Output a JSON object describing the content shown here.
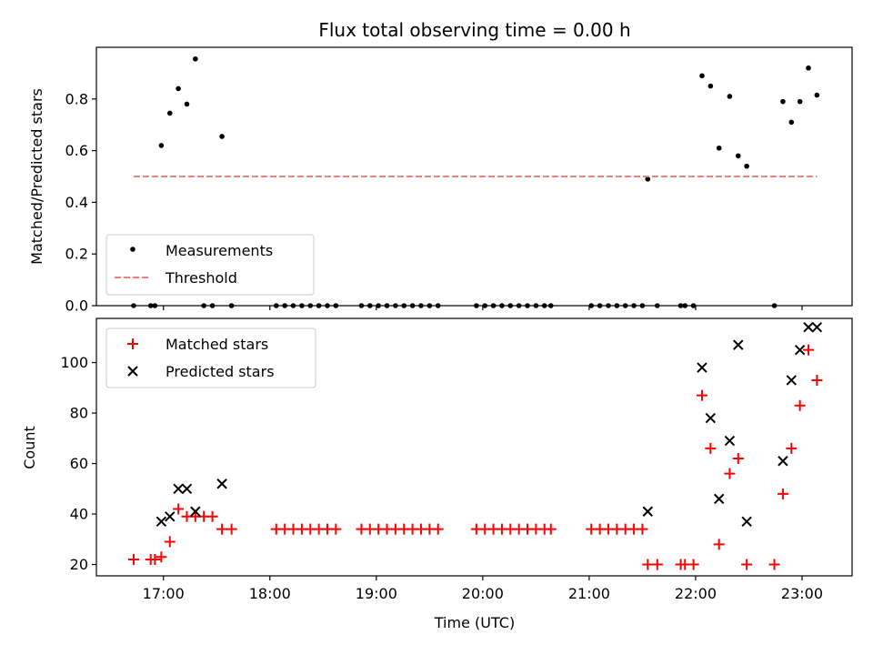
{
  "chart_data": {
    "type": "scatter",
    "title": "Flux total observing time = 0.00 h",
    "xlabel": "Time (UTC)",
    "x_unit": "hours (UTC, decimal)",
    "xlim": [
      16.37,
      23.47
    ],
    "x_ticks": [
      {
        "value": 17,
        "label": "17:00"
      },
      {
        "value": 18,
        "label": "18:00"
      },
      {
        "value": 19,
        "label": "19:00"
      },
      {
        "value": 20,
        "label": "20:00"
      },
      {
        "value": 21,
        "label": "21:00"
      },
      {
        "value": 22,
        "label": "22:00"
      },
      {
        "value": 23,
        "label": "23:00"
      }
    ],
    "panels": [
      {
        "name": "ratio",
        "ylabel": "Matched/Predicted stars",
        "ylim": [
          0,
          1.0
        ],
        "y_ticks": [
          0.0,
          0.2,
          0.4,
          0.6,
          0.8
        ],
        "y_tick_labels": [
          "0.0",
          "0.2",
          "0.4",
          "0.6",
          "0.8"
        ],
        "legend_position": "lower-left",
        "series": [
          {
            "name": "Measurements",
            "marker": "dot",
            "color": "#000000",
            "points": [
              [
                16.72,
                0.0
              ],
              [
                16.88,
                0.0
              ],
              [
                16.92,
                0.0
              ],
              [
                16.98,
                0.62
              ],
              [
                17.06,
                0.745
              ],
              [
                17.14,
                0.84
              ],
              [
                17.22,
                0.78
              ],
              [
                17.3,
                0.955
              ],
              [
                17.38,
                0.0
              ],
              [
                17.46,
                0.0
              ],
              [
                17.55,
                0.655
              ],
              [
                17.64,
                0.0
              ],
              [
                18.06,
                0.0
              ],
              [
                18.14,
                0.0
              ],
              [
                18.22,
                0.0
              ],
              [
                18.3,
                0.0
              ],
              [
                18.38,
                0.0
              ],
              [
                18.46,
                0.0
              ],
              [
                18.54,
                0.0
              ],
              [
                18.62,
                0.0
              ],
              [
                18.86,
                0.0
              ],
              [
                18.94,
                0.0
              ],
              [
                19.02,
                0.0
              ],
              [
                19.1,
                0.0
              ],
              [
                19.18,
                0.0
              ],
              [
                19.26,
                0.0
              ],
              [
                19.34,
                0.0
              ],
              [
                19.42,
                0.0
              ],
              [
                19.5,
                0.0
              ],
              [
                19.58,
                0.0
              ],
              [
                19.94,
                0.0
              ],
              [
                20.02,
                0.0
              ],
              [
                20.1,
                0.0
              ],
              [
                20.18,
                0.0
              ],
              [
                20.26,
                0.0
              ],
              [
                20.34,
                0.0
              ],
              [
                20.42,
                0.0
              ],
              [
                20.5,
                0.0
              ],
              [
                20.58,
                0.0
              ],
              [
                20.64,
                0.0
              ],
              [
                21.02,
                0.0
              ],
              [
                21.1,
                0.0
              ],
              [
                21.18,
                0.0
              ],
              [
                21.26,
                0.0
              ],
              [
                21.34,
                0.0
              ],
              [
                21.42,
                0.0
              ],
              [
                21.5,
                0.0
              ],
              [
                21.55,
                0.49
              ],
              [
                21.64,
                0.0
              ],
              [
                21.86,
                0.0
              ],
              [
                21.9,
                0.0
              ],
              [
                21.98,
                0.0
              ],
              [
                22.06,
                0.89
              ],
              [
                22.14,
                0.85
              ],
              [
                22.22,
                0.61
              ],
              [
                22.32,
                0.81
              ],
              [
                22.4,
                0.58
              ],
              [
                22.48,
                0.54
              ],
              [
                22.74,
                0.0
              ],
              [
                22.82,
                0.79
              ],
              [
                22.9,
                0.71
              ],
              [
                22.98,
                0.79
              ],
              [
                23.06,
                0.92
              ],
              [
                23.14,
                0.815
              ]
            ]
          },
          {
            "name": "Threshold",
            "marker": "dashed-line",
            "color": "#f08080",
            "points": [
              [
                16.72,
                0.5
              ],
              [
                23.14,
                0.5
              ]
            ]
          }
        ]
      },
      {
        "name": "count",
        "ylabel": "Count",
        "ylim": [
          15.5,
          117.5
        ],
        "y_ticks": [
          20,
          40,
          60,
          80,
          100
        ],
        "y_tick_labels": [
          "20",
          "40",
          "60",
          "80",
          "100"
        ],
        "legend_position": "upper-left",
        "series": [
          {
            "name": "Matched stars",
            "marker": "plus",
            "color": "#ff0000",
            "points": [
              [
                16.72,
                22
              ],
              [
                16.88,
                22
              ],
              [
                16.92,
                22
              ],
              [
                16.98,
                23
              ],
              [
                17.06,
                29
              ],
              [
                17.14,
                42
              ],
              [
                17.22,
                39
              ],
              [
                17.3,
                39
              ],
              [
                17.38,
                39
              ],
              [
                17.46,
                39
              ],
              [
                17.55,
                34
              ],
              [
                17.64,
                34
              ],
              [
                18.06,
                34
              ],
              [
                18.14,
                34
              ],
              [
                18.22,
                34
              ],
              [
                18.3,
                34
              ],
              [
                18.38,
                34
              ],
              [
                18.46,
                34
              ],
              [
                18.54,
                34
              ],
              [
                18.62,
                34
              ],
              [
                18.86,
                34
              ],
              [
                18.94,
                34
              ],
              [
                19.02,
                34
              ],
              [
                19.1,
                34
              ],
              [
                19.18,
                34
              ],
              [
                19.26,
                34
              ],
              [
                19.34,
                34
              ],
              [
                19.42,
                34
              ],
              [
                19.5,
                34
              ],
              [
                19.58,
                34
              ],
              [
                19.94,
                34
              ],
              [
                20.02,
                34
              ],
              [
                20.1,
                34
              ],
              [
                20.18,
                34
              ],
              [
                20.26,
                34
              ],
              [
                20.34,
                34
              ],
              [
                20.42,
                34
              ],
              [
                20.5,
                34
              ],
              [
                20.58,
                34
              ],
              [
                20.64,
                34
              ],
              [
                21.02,
                34
              ],
              [
                21.1,
                34
              ],
              [
                21.18,
                34
              ],
              [
                21.26,
                34
              ],
              [
                21.34,
                34
              ],
              [
                21.42,
                34
              ],
              [
                21.5,
                34
              ],
              [
                21.55,
                20
              ],
              [
                21.64,
                20
              ],
              [
                21.86,
                20
              ],
              [
                21.9,
                20
              ],
              [
                21.98,
                20
              ],
              [
                22.06,
                87
              ],
              [
                22.14,
                66
              ],
              [
                22.22,
                28
              ],
              [
                22.32,
                56
              ],
              [
                22.4,
                62
              ],
              [
                22.48,
                20
              ],
              [
                22.74,
                20
              ],
              [
                22.82,
                48
              ],
              [
                22.9,
                66
              ],
              [
                22.98,
                83
              ],
              [
                23.06,
                105
              ],
              [
                23.14,
                93
              ]
            ]
          },
          {
            "name": "Predicted stars",
            "marker": "x",
            "color": "#000000",
            "points": [
              [
                16.98,
                37
              ],
              [
                17.06,
                39
              ],
              [
                17.14,
                50
              ],
              [
                17.22,
                50
              ],
              [
                17.3,
                41
              ],
              [
                17.55,
                52
              ],
              [
                21.55,
                41
              ],
              [
                22.06,
                98
              ],
              [
                22.14,
                78
              ],
              [
                22.22,
                46
              ],
              [
                22.32,
                69
              ],
              [
                22.4,
                107
              ],
              [
                22.48,
                37
              ],
              [
                22.82,
                61
              ],
              [
                22.9,
                93
              ],
              [
                22.98,
                105
              ],
              [
                23.06,
                114
              ],
              [
                23.14,
                114
              ]
            ]
          }
        ]
      }
    ]
  }
}
